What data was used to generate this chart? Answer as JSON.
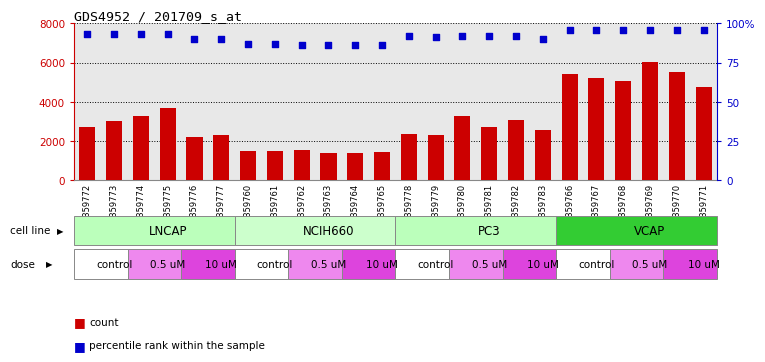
{
  "title": "GDS4952 / 201709_s_at",
  "samples": [
    "GSM1359772",
    "GSM1359773",
    "GSM1359774",
    "GSM1359775",
    "GSM1359776",
    "GSM1359777",
    "GSM1359760",
    "GSM1359761",
    "GSM1359762",
    "GSM1359763",
    "GSM1359764",
    "GSM1359765",
    "GSM1359778",
    "GSM1359779",
    "GSM1359780",
    "GSM1359781",
    "GSM1359782",
    "GSM1359783",
    "GSM1359766",
    "GSM1359767",
    "GSM1359768",
    "GSM1359769",
    "GSM1359770",
    "GSM1359771"
  ],
  "counts": [
    2700,
    3000,
    3300,
    3700,
    2200,
    2300,
    1500,
    1500,
    1550,
    1400,
    1400,
    1450,
    2350,
    2300,
    3300,
    2700,
    3100,
    2550,
    5400,
    5200,
    5050,
    6050,
    5500,
    4750
  ],
  "percentiles": [
    93,
    93,
    93,
    93,
    90,
    90,
    87,
    87,
    86,
    86,
    86,
    86,
    92,
    91,
    92,
    92,
    92,
    90,
    96,
    96,
    96,
    96,
    96,
    96
  ],
  "cell_lines": [
    {
      "label": "LNCAP",
      "start": 0,
      "end": 6,
      "color": "#bbffbb"
    },
    {
      "label": "NCIH660",
      "start": 6,
      "end": 12,
      "color": "#ccffcc"
    },
    {
      "label": "PC3",
      "start": 12,
      "end": 18,
      "color": "#bbffbb"
    },
    {
      "label": "VCAP",
      "start": 18,
      "end": 24,
      "color": "#33cc33"
    }
  ],
  "doses": [
    {
      "label": "control",
      "start": 0,
      "end": 2,
      "color": "#ffffff"
    },
    {
      "label": "0.5 uM",
      "start": 2,
      "end": 4,
      "color": "#ee88ee"
    },
    {
      "label": "10 uM",
      "start": 4,
      "end": 6,
      "color": "#dd44dd"
    },
    {
      "label": "control",
      "start": 6,
      "end": 8,
      "color": "#ffffff"
    },
    {
      "label": "0.5 uM",
      "start": 8,
      "end": 10,
      "color": "#ee88ee"
    },
    {
      "label": "10 uM",
      "start": 10,
      "end": 12,
      "color": "#dd44dd"
    },
    {
      "label": "control",
      "start": 12,
      "end": 14,
      "color": "#ffffff"
    },
    {
      "label": "0.5 uM",
      "start": 14,
      "end": 16,
      "color": "#ee88ee"
    },
    {
      "label": "10 uM",
      "start": 16,
      "end": 18,
      "color": "#dd44dd"
    },
    {
      "label": "control",
      "start": 18,
      "end": 20,
      "color": "#ffffff"
    },
    {
      "label": "0.5 uM",
      "start": 20,
      "end": 22,
      "color": "#ee88ee"
    },
    {
      "label": "10 uM",
      "start": 22,
      "end": 24,
      "color": "#dd44dd"
    }
  ],
  "bar_color": "#cc0000",
  "dot_color": "#0000cc",
  "ylim_left": [
    0,
    8000
  ],
  "ylim_right": [
    0,
    100
  ],
  "yticks_left": [
    0,
    2000,
    4000,
    6000,
    8000
  ],
  "yticks_right": [
    0,
    25,
    50,
    75,
    100
  ],
  "plot_bg": "#e8e8e8"
}
